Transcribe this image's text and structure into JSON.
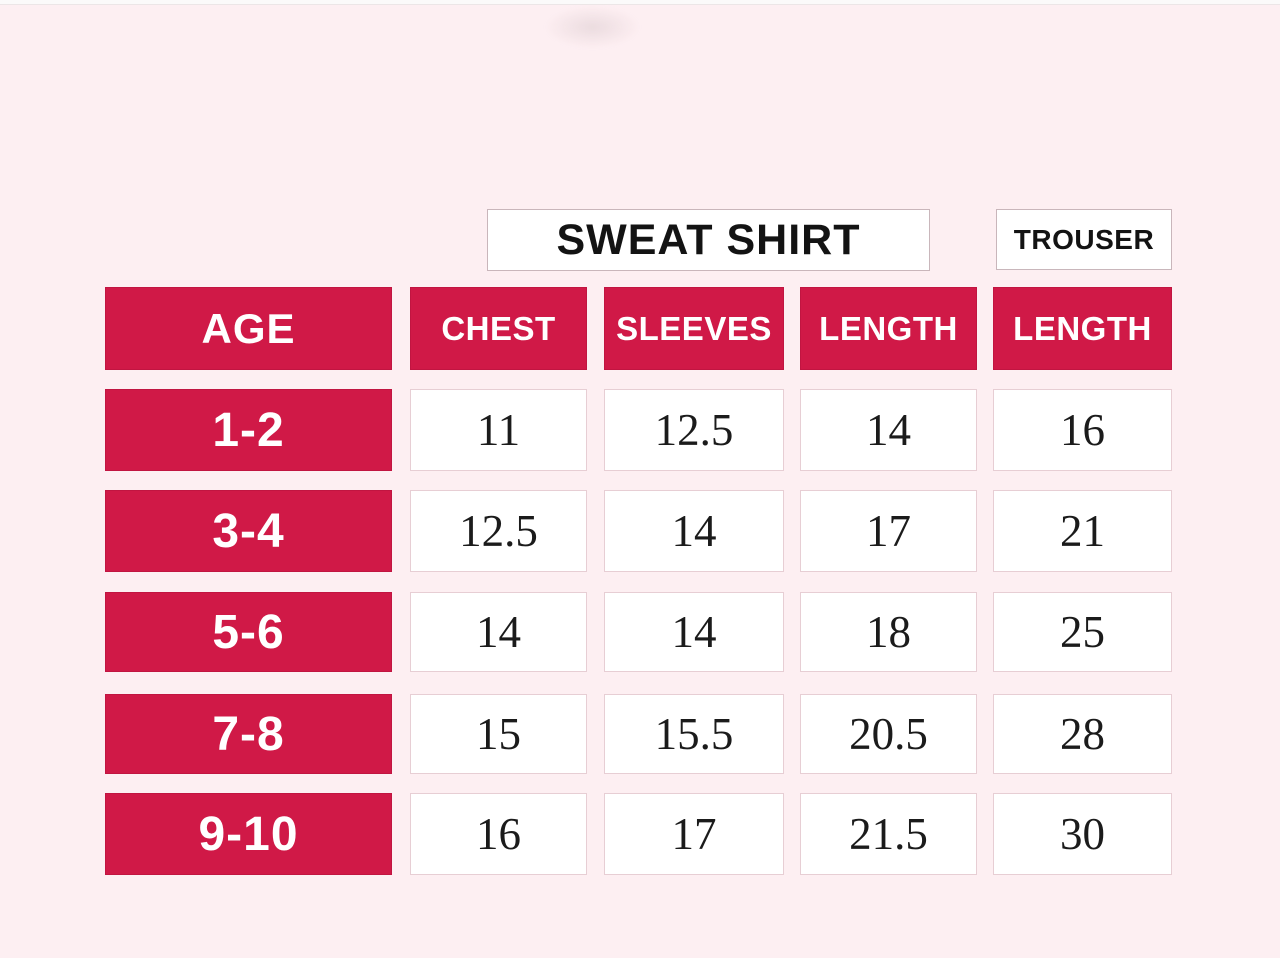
{
  "colors": {
    "background": "#fdeff2",
    "accent_red": "#d01947",
    "cell_background": "#ffffff",
    "cell_border": "#e7ced4",
    "header_text": "#ffffff",
    "number_text": "#1b1b1b"
  },
  "chart_data": {
    "type": "table",
    "column_groups": [
      {
        "label": "SWEAT SHIRT",
        "columns": [
          "CHEST",
          "SLEEVES",
          "LENGTH"
        ]
      },
      {
        "label": "TROUSER",
        "columns": [
          "LENGTH"
        ]
      }
    ],
    "columns": [
      "AGE",
      "CHEST",
      "SLEEVES",
      "LENGTH",
      "LENGTH"
    ],
    "rows": [
      {
        "age": "1-2",
        "values": [
          "11",
          "12.5",
          "14",
          "16"
        ]
      },
      {
        "age": "3-4",
        "values": [
          "12.5",
          "14",
          "17",
          "21"
        ]
      },
      {
        "age": "5-6",
        "values": [
          "14",
          "14",
          "18",
          "25"
        ]
      },
      {
        "age": "7-8",
        "values": [
          "15",
          "15.5",
          "20.5",
          "28"
        ]
      },
      {
        "age": "9-10",
        "values": [
          "16",
          "17",
          "21.5",
          "30"
        ]
      }
    ]
  }
}
